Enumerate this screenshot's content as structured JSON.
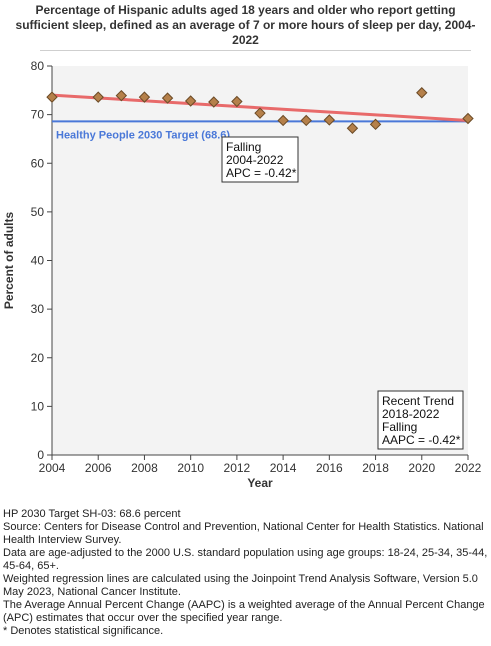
{
  "chart_title": "Percentage of Hispanic adults aged 18 years and older who report getting sufficient sleep, defined as an average of 7 or more hours of sleep per day, 2004-2022",
  "colors": {
    "point_fill": "#b5804a",
    "point_stroke": "#6b4a26",
    "trend_line": "#e86a6a",
    "target_line": "#4a78d8",
    "plot_bg": "#f3f3f3"
  },
  "chart_data": {
    "type": "scatter",
    "title": "Percentage of Hispanic adults aged 18 years and older who report getting sufficient sleep, defined as an average of 7 or more hours of sleep per day, 2004-2022",
    "xlabel": "Year",
    "ylabel": "Percent of adults",
    "xlim": [
      2004,
      2022
    ],
    "ylim": [
      0,
      80
    ],
    "x_ticks": [
      2004,
      2006,
      2008,
      2010,
      2012,
      2014,
      2016,
      2018,
      2020,
      2022
    ],
    "y_ticks": [
      0,
      10,
      20,
      30,
      40,
      50,
      60,
      70,
      80
    ],
    "grid": false,
    "series": [
      {
        "x": [
          2004,
          2006,
          2007,
          2008,
          2009,
          2010,
          2011,
          2012,
          2013,
          2014,
          2015,
          2016,
          2017,
          2018,
          2020,
          2022
        ],
        "y": [
          73.6,
          73.6,
          73.9,
          73.6,
          73.4,
          72.8,
          72.6,
          72.7,
          70.3,
          68.8,
          68.8,
          68.9,
          67.2,
          68.0,
          74.5,
          69.2
        ]
      }
    ],
    "trend_line": {
      "x": [
        2004,
        2022
      ],
      "y": [
        74.0,
        68.8
      ]
    },
    "target": {
      "label": "Healthy People 2030 Target (68.6)",
      "value": 68.6
    },
    "annotations": [
      {
        "lines": [
          "Falling",
          "2004-2022",
          "APC = -0.42*"
        ]
      },
      {
        "lines": [
          "Recent Trend",
          "2018-2022",
          "Falling",
          "AAPC = -0.42*"
        ]
      }
    ]
  },
  "notes": [
    "HP 2030 Target SH-03: 68.6 percent",
    "Source: Centers for Disease Control and Prevention, National Center for Health Statistics. National Health Interview Survey.",
    "Data are age-adjusted to the 2000 U.S. standard population using age groups: 18-24, 25-34, 35-44, 45-64, 65+.",
    "Weighted regression lines are calculated using the Joinpoint Trend Analysis Software, Version 5.0 May 2023, National Cancer Institute.",
    "The Average Annual Percent Change (AAPC) is a weighted average of the Annual Percent Change (APC) estimates that occur over the specified year range.",
    "* Denotes statistical significance."
  ]
}
